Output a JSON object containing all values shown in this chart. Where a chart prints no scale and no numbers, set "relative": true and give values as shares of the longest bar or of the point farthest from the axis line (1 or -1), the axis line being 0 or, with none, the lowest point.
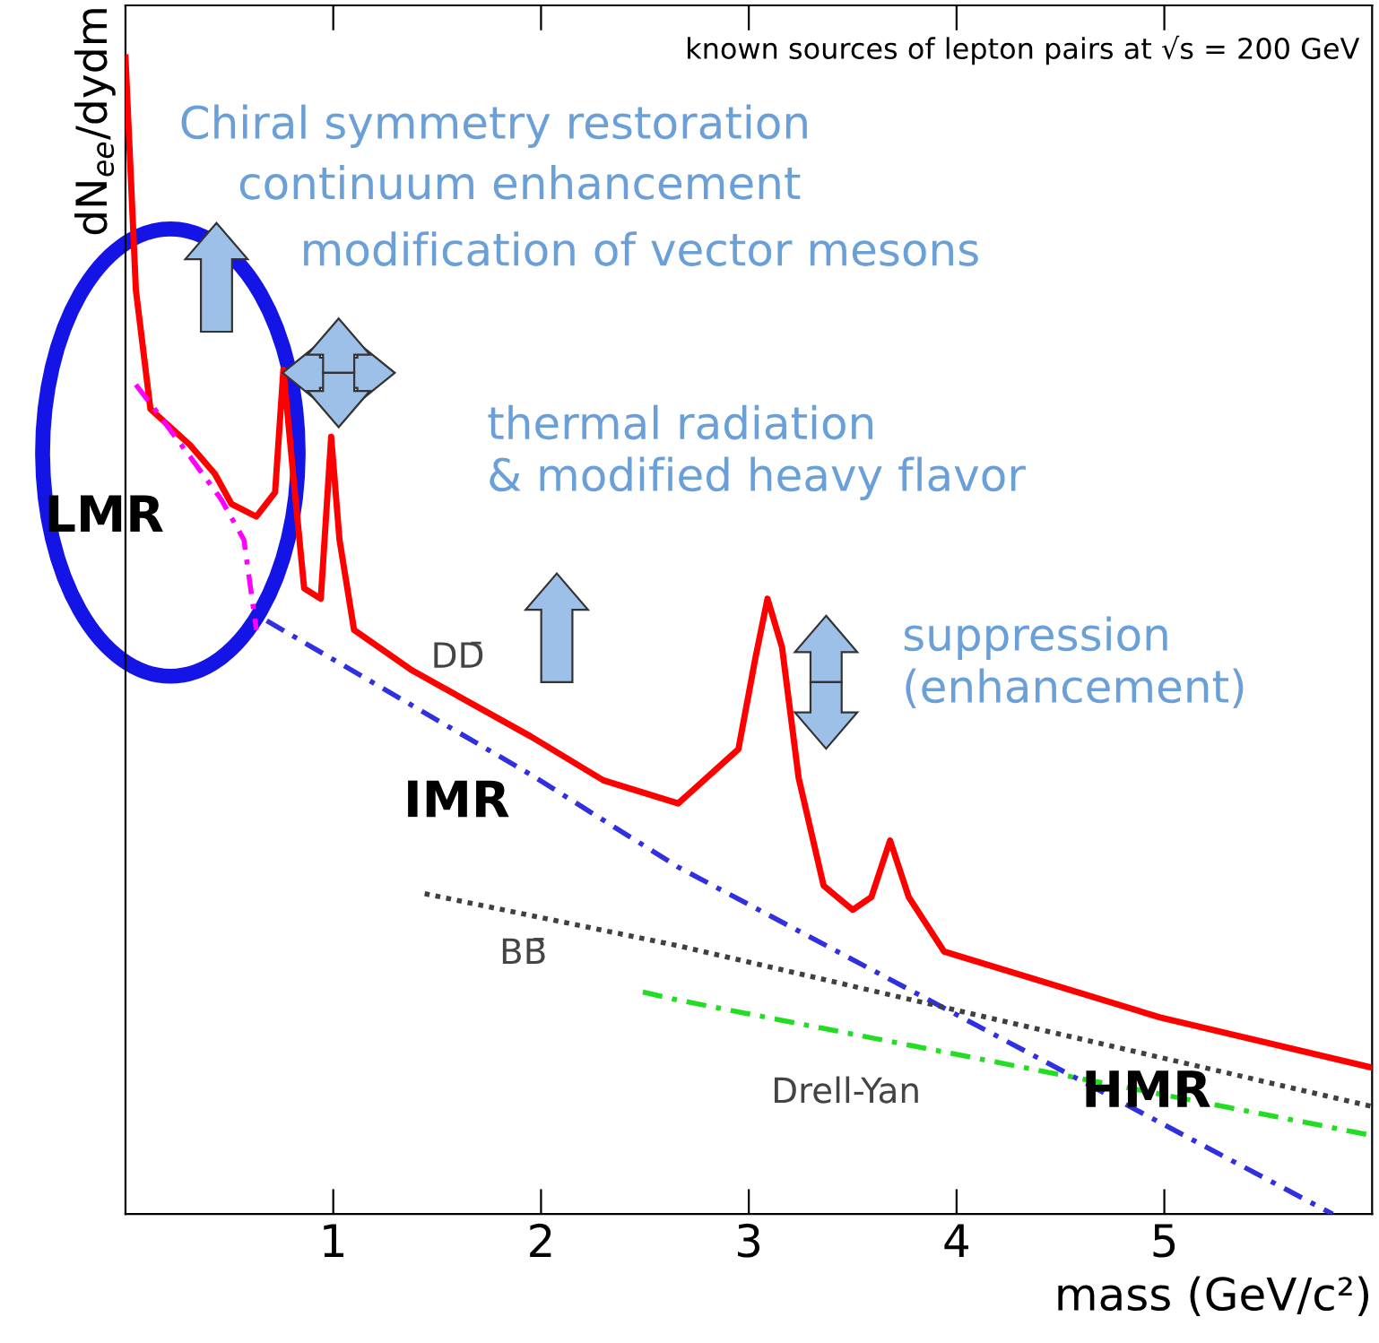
{
  "chart_data": {
    "type": "line",
    "relative": true,
    "xlabel": "mass (GeV/c²)",
    "ylabel": "dN$_{ee}$/dydm",
    "xlim": [
      0,
      6
    ],
    "xticks": [
      1,
      2,
      3,
      4,
      5
    ],
    "tick_labels": "x",
    "grid": false,
    "legend": false,
    "series": [
      {
        "color": "#ff0000",
        "line_style": "solid",
        "x": [
          0,
          0.05,
          0.12,
          0.31,
          0.43,
          0.51,
          0.63,
          0.72,
          0.76,
          0.81,
          0.86,
          0.94,
          0.99,
          1.03,
          1.1,
          1.38,
          1.95,
          2.3,
          2.66,
          2.95,
          3.03,
          3.09,
          3.16,
          3.24,
          3.36,
          3.5,
          3.59,
          3.68,
          3.77,
          3.94,
          4.98,
          5.99
        ],
        "values": [
          1.0,
          0.799,
          0.696,
          0.665,
          0.64,
          0.614,
          0.603,
          0.624,
          0.73,
          0.634,
          0.541,
          0.532,
          0.672,
          0.583,
          0.505,
          0.47,
          0.413,
          0.375,
          0.355,
          0.402,
          0.479,
          0.532,
          0.49,
          0.377,
          0.284,
          0.263,
          0.274,
          0.323,
          0.274,
          0.227,
          0.17,
          0.127
        ]
      },
      {
        "color": "#ff00ff",
        "line_style": "dashed",
        "x": [
          0.05,
          0.14,
          0.31,
          0.46,
          0.57,
          0.63
        ],
        "values": [
          0.717,
          0.696,
          0.655,
          0.618,
          0.583,
          0.505
        ]
      },
      {
        "color": "#3030e0",
        "line_style": "dashed",
        "x": [
          0.68,
          1.95,
          2.66,
          5.81
        ],
        "values": [
          0.513,
          0.38,
          0.3,
          0.0
        ]
      },
      {
        "color": "#404040",
        "line_style": "dotted",
        "x": [
          1.44,
          2.66,
          6.0
        ],
        "values": [
          0.277,
          0.232,
          0.093
        ]
      },
      {
        "color": "#22dd22",
        "line_style": "dashed",
        "x": [
          2.49,
          2.66,
          6.0
        ],
        "values": [
          0.192,
          0.185,
          0.068
        ]
      }
    ],
    "annotations": [
      "known sources of lepton pairs at √s = 200 GeV",
      "Chiral symmetry restoration",
      "continuum enhancement",
      "modification of vector mesons",
      "thermal radiation\n& modified heavy flavor",
      "suppression\n(enhancement)",
      "DD̄",
      "BB̄",
      "Drell-Yan",
      "LMR",
      "IMR",
      "HMR"
    ]
  }
}
